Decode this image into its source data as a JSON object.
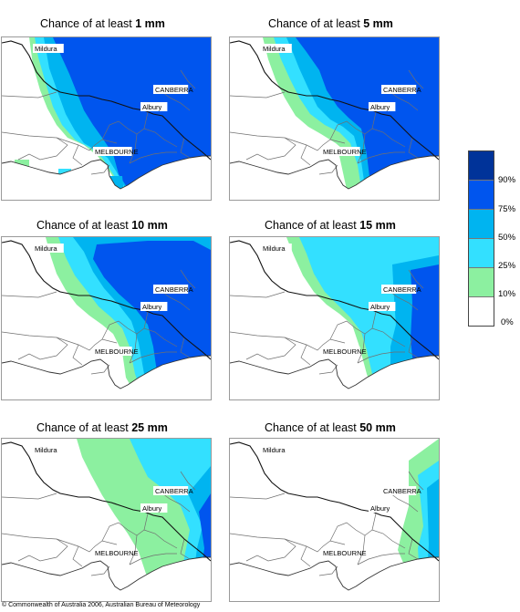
{
  "panels": [
    {
      "title_prefix": "Chance of at least ",
      "amount": "1 mm"
    },
    {
      "title_prefix": "Chance of at least ",
      "amount": "5 mm"
    },
    {
      "title_prefix": "Chance of at least ",
      "amount": "10 mm"
    },
    {
      "title_prefix": "Chance of at least ",
      "amount": "15 mm"
    },
    {
      "title_prefix": "Chance of at least ",
      "amount": "25 mm"
    },
    {
      "title_prefix": "Chance of at least ",
      "amount": "50 mm"
    }
  ],
  "cities": {
    "mildura": "Mildura",
    "canberra": "CANBERRA",
    "albury": "Albury",
    "melbourne": "MELBOURNE"
  },
  "legend": {
    "labels": [
      "90%",
      "75%",
      "50%",
      "25%",
      "10%",
      "0%"
    ],
    "colors": [
      "#003399",
      "#0055ee",
      "#00b4f0",
      "#33e0ff",
      "#8cf0a0",
      "#ffffff"
    ]
  },
  "copyright": "© Commonwealth of Australia 2006, Australian Bureau of Meteorology"
}
